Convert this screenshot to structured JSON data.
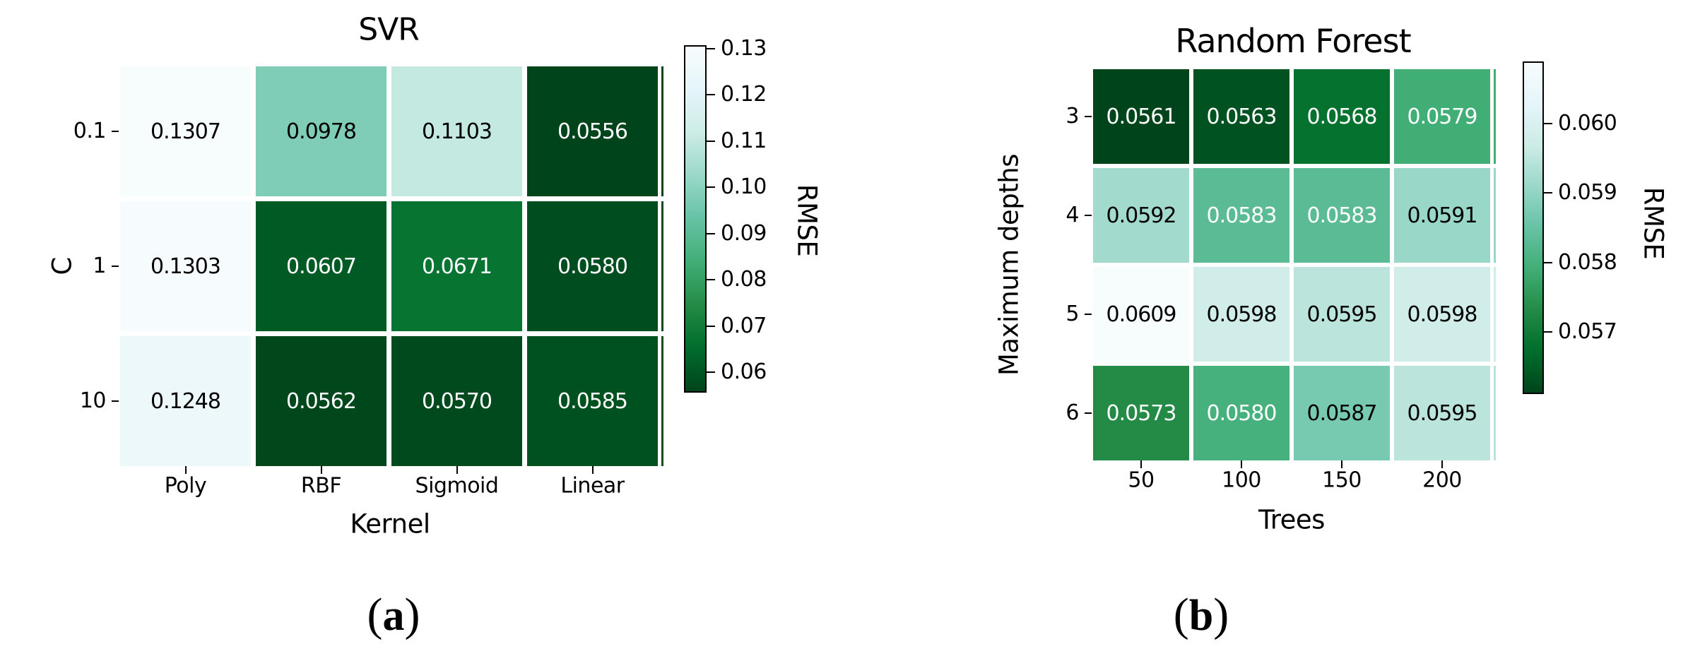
{
  "page": {
    "background": "#ffffff"
  },
  "chart_data": [
    {
      "type": "heatmap",
      "panel_id": "svr",
      "title": "SVR",
      "xlabel": "Kernel",
      "ylabel": "C",
      "x_categories": [
        "Poly",
        "RBF",
        "Sigmoid",
        "Linear"
      ],
      "y_categories": [
        "0.1",
        "1",
        "10"
      ],
      "values": [
        [
          0.1307,
          0.0978,
          0.1103,
          0.0556
        ],
        [
          0.1303,
          0.0607,
          0.0671,
          0.058
        ],
        [
          0.1248,
          0.0562,
          0.057,
          0.0585
        ]
      ],
      "cell_labels": [
        [
          "0.1307",
          "0.0978",
          "0.1103",
          "0.0556"
        ],
        [
          "0.1303",
          "0.0607",
          "0.0671",
          "0.0580"
        ],
        [
          "0.1248",
          "0.0562",
          "0.0570",
          "0.0585"
        ]
      ],
      "vmin": 0.0556,
      "vmax": 0.1307,
      "colormap": "BuGn reversed (low value = dark green, high value = near white)",
      "colorbar": {
        "label": "RMSE",
        "tick_labels": [
          "0.13",
          "0.12",
          "0.11",
          "0.10",
          "0.09",
          "0.08",
          "0.07",
          "0.06"
        ],
        "tick_values": [
          0.13,
          0.12,
          0.11,
          0.1,
          0.09,
          0.08,
          0.07,
          0.06
        ]
      },
      "caption": {
        "open": "(",
        "letter": "a",
        "close": ")"
      }
    },
    {
      "type": "heatmap",
      "panel_id": "random-forest",
      "title": "Random Forest",
      "xlabel": "Trees",
      "ylabel": "Maximum depths",
      "x_categories": [
        "50",
        "100",
        "150",
        "200"
      ],
      "y_categories": [
        "3",
        "4",
        "5",
        "6"
      ],
      "values": [
        [
          0.0561,
          0.0563,
          0.0568,
          0.0579
        ],
        [
          0.0592,
          0.0583,
          0.0583,
          0.0591
        ],
        [
          0.0609,
          0.0598,
          0.0595,
          0.0598
        ],
        [
          0.0573,
          0.058,
          0.0587,
          0.0595
        ]
      ],
      "cell_labels": [
        [
          "0.0561",
          "0.0563",
          "0.0568",
          "0.0579"
        ],
        [
          "0.0592",
          "0.0583",
          "0.0583",
          "0.0591"
        ],
        [
          "0.0609",
          "0.0598",
          "0.0595",
          "0.0598"
        ],
        [
          "0.0573",
          "0.0580",
          "0.0587",
          "0.0595"
        ]
      ],
      "vmin": 0.0561,
      "vmax": 0.0609,
      "colormap": "BuGn reversed (low value = dark green, high value = near white)",
      "colorbar": {
        "label": "RMSE",
        "tick_labels": [
          "0.060",
          "0.059",
          "0.058",
          "0.057"
        ],
        "tick_values": [
          0.06,
          0.059,
          0.058,
          0.057
        ]
      },
      "caption": {
        "open": "(",
        "letter": "b",
        "close": ")"
      }
    }
  ],
  "colors": {
    "palette_bugn": [
      "#f7fcfd",
      "#e5f5f9",
      "#ccece6",
      "#99d8c9",
      "#66c2a4",
      "#41ae76",
      "#238b45",
      "#006d2c",
      "#00441b"
    ],
    "annotation_light": "#ffffff",
    "annotation_dark": "#000000",
    "tick_color": "#000000"
  }
}
